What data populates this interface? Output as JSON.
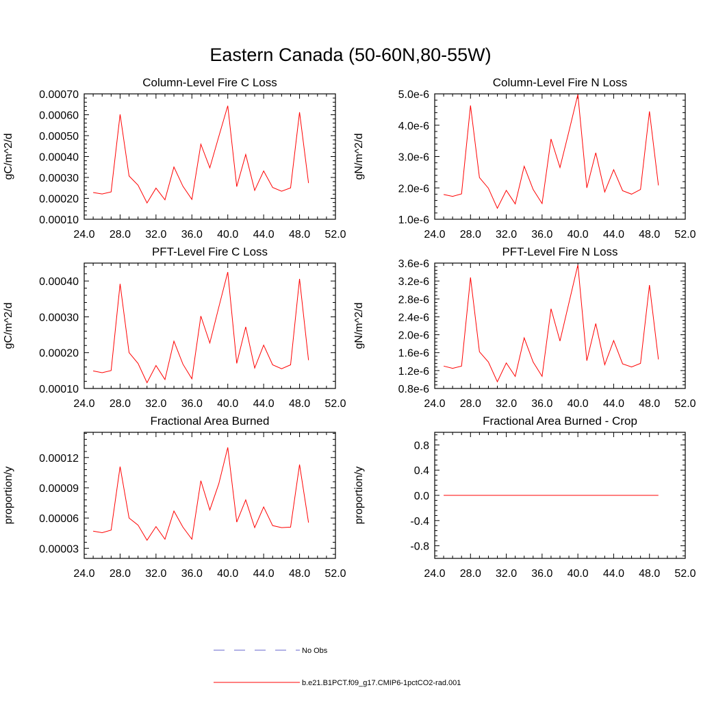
{
  "page": {
    "title": "Eastern Canada (50-60N,80-55W)"
  },
  "colors": {
    "model_line": "#ff0000",
    "obs_line": "#6666cc",
    "axis": "#000000"
  },
  "legend": {
    "items": [
      {
        "label": "No Obs",
        "style": "dashed",
        "color": "#6666cc"
      },
      {
        "label": "b.e21.B1PCT.f09_g17.CMIP6-1pctCO2-rad.001",
        "style": "solid",
        "color": "#ff0000"
      }
    ]
  },
  "chart_data": [
    {
      "type": "line",
      "title": "Column-Level Fire C Loss",
      "xlabel": "",
      "ylabel": "gC/m^2/d",
      "xlim": [
        24,
        52
      ],
      "ylim": [
        0.0001,
        0.0007
      ],
      "xticks": [
        "24.0",
        "28.0",
        "32.0",
        "36.0",
        "40.0",
        "44.0",
        "48.0",
        "52.0"
      ],
      "yticks": [
        "0.00010",
        "0.00020",
        "0.00030",
        "0.00040",
        "0.00050",
        "0.00060",
        "0.00070"
      ],
      "x": [
        25,
        26,
        27,
        28,
        29,
        30,
        31,
        32,
        33,
        34,
        35,
        36,
        37,
        38,
        39,
        40,
        41,
        42,
        43,
        44,
        45,
        46,
        47,
        48,
        49
      ],
      "series": [
        {
          "name": "b.e21.B1PCT.f09_g17.CMIP6-1pctCO2-rad.001",
          "values": [
            0.000228,
            0.000221,
            0.000231,
            0.000602,
            0.000307,
            0.000263,
            0.000178,
            0.000249,
            0.000193,
            0.00035,
            0.000258,
            0.000195,
            0.000459,
            0.000346,
            0.000496,
            0.000643,
            0.000256,
            0.00041,
            0.000238,
            0.000331,
            0.000252,
            0.000234,
            0.00025,
            0.000612,
            0.000273
          ]
        }
      ]
    },
    {
      "type": "line",
      "title": "Column-Level Fire N Loss",
      "xlabel": "",
      "ylabel": "gN/m^2/d",
      "xlim": [
        24,
        52
      ],
      "ylim": [
        1e-06,
        5e-06
      ],
      "xticks": [
        "24.0",
        "28.0",
        "32.0",
        "36.0",
        "40.0",
        "44.0",
        "48.0",
        "52.0"
      ],
      "yticks": [
        "1.0e-6",
        "2.0e-6",
        "3.0e-6",
        "4.0e-6",
        "5.0e-6"
      ],
      "x": [
        25,
        26,
        27,
        28,
        29,
        30,
        31,
        32,
        33,
        34,
        35,
        36,
        37,
        38,
        39,
        40,
        41,
        42,
        43,
        44,
        45,
        46,
        47,
        48,
        49
      ],
      "series": [
        {
          "name": "b.e21.B1PCT.f09_g17.CMIP6-1pctCO2-rad.001",
          "values": [
            1.79e-06,
            1.73e-06,
            1.81e-06,
            4.63e-06,
            2.33e-06,
            1.99e-06,
            1.35e-06,
            1.92e-06,
            1.49e-06,
            2.69e-06,
            1.95e-06,
            1.5e-06,
            3.56e-06,
            2.65e-06,
            3.8e-06,
            4.98e-06,
            2e-06,
            3.12e-06,
            1.87e-06,
            2.58e-06,
            1.91e-06,
            1.8e-06,
            1.95e-06,
            4.44e-06,
            2.08e-06
          ]
        }
      ]
    },
    {
      "type": "line",
      "title": "PFT-Level Fire C Loss",
      "xlabel": "",
      "ylabel": "gC/m^2/d",
      "xlim": [
        24,
        52
      ],
      "ylim": [
        0.0001,
        0.00045
      ],
      "xticks": [
        "24.0",
        "28.0",
        "32.0",
        "36.0",
        "40.0",
        "44.0",
        "48.0",
        "52.0"
      ],
      "yticks": [
        "0.00010",
        "0.00020",
        "0.00030",
        "0.00040"
      ],
      "x": [
        25,
        26,
        27,
        28,
        29,
        30,
        31,
        32,
        33,
        34,
        35,
        36,
        37,
        38,
        39,
        40,
        41,
        42,
        43,
        44,
        45,
        46,
        47,
        48,
        49
      ],
      "series": [
        {
          "name": "b.e21.B1PCT.f09_g17.CMIP6-1pctCO2-rad.001",
          "values": [
            0.000149,
            0.000144,
            0.00015,
            0.000392,
            0.0002,
            0.00017,
            0.000116,
            0.000164,
            0.000125,
            0.000232,
            0.000168,
            0.000127,
            0.000302,
            0.000227,
            0.000327,
            0.000425,
            0.00017,
            0.000272,
            0.000157,
            0.000221,
            0.000166,
            0.000155,
            0.000166,
            0.000406,
            0.000179
          ]
        }
      ]
    },
    {
      "type": "line",
      "title": "PFT-Level Fire N Loss",
      "xlabel": "",
      "ylabel": "gN/m^2/d",
      "xlim": [
        24,
        52
      ],
      "ylim": [
        8e-07,
        3.6e-06
      ],
      "xticks": [
        "24.0",
        "28.0",
        "32.0",
        "36.0",
        "40.0",
        "44.0",
        "48.0",
        "52.0"
      ],
      "yticks": [
        "0.8e-6",
        "1.2e-6",
        "1.6e-6",
        "2.0e-6",
        "2.4e-6",
        "2.8e-6",
        "3.2e-6",
        "3.6e-6"
      ],
      "x": [
        25,
        26,
        27,
        28,
        29,
        30,
        31,
        32,
        33,
        34,
        35,
        36,
        37,
        38,
        39,
        40,
        41,
        42,
        43,
        44,
        45,
        46,
        47,
        48,
        49
      ],
      "series": [
        {
          "name": "b.e21.B1PCT.f09_g17.CMIP6-1pctCO2-rad.001",
          "values": [
            1.3e-06,
            1.25e-06,
            1.3e-06,
            3.28e-06,
            1.62e-06,
            1.39e-06,
            9.5e-07,
            1.37e-06,
            1.07e-06,
            1.93e-06,
            1.39e-06,
            1.07e-06,
            2.58e-06,
            1.86e-06,
            2.71e-06,
            3.56e-06,
            1.42e-06,
            2.25e-06,
            1.33e-06,
            1.87e-06,
            1.35e-06,
            1.28e-06,
            1.36e-06,
            3.11e-06,
            1.45e-06
          ]
        }
      ]
    },
    {
      "type": "line",
      "title": "Fractional Area Burned",
      "xlabel": "",
      "ylabel": "proportion/y",
      "xlim": [
        24,
        52
      ],
      "ylim": [
        2e-05,
        0.000145
      ],
      "xticks": [
        "24.0",
        "28.0",
        "32.0",
        "36.0",
        "40.0",
        "44.0",
        "48.0",
        "52.0"
      ],
      "yticks": [
        "0.00003",
        "0.00006",
        "0.00009",
        "0.00012"
      ],
      "x": [
        25,
        26,
        27,
        28,
        29,
        30,
        31,
        32,
        33,
        34,
        35,
        36,
        37,
        38,
        39,
        40,
        41,
        42,
        43,
        44,
        45,
        46,
        47,
        48,
        49
      ],
      "series": [
        {
          "name": "b.e21.B1PCT.f09_g17.CMIP6-1pctCO2-rad.001",
          "values": [
            4.7e-05,
            4.55e-05,
            4.8e-05,
            0.000111,
            6e-05,
            5.3e-05,
            3.8e-05,
            5.15e-05,
            3.9e-05,
            6.7e-05,
            5.1e-05,
            3.9e-05,
            9.7e-05,
            6.8e-05,
            9.4e-05,
            0.00013,
            5.6e-05,
            7.8e-05,
            5.05e-05,
            7.1e-05,
            5.25e-05,
            5.05e-05,
            5.1e-05,
            0.000113,
            5.55e-05
          ]
        }
      ]
    },
    {
      "type": "line",
      "title": "Fractional Area Burned - Crop",
      "xlabel": "",
      "ylabel": "proportion/y",
      "xlim": [
        24,
        52
      ],
      "ylim": [
        -1.0,
        1.0
      ],
      "xticks": [
        "24.0",
        "28.0",
        "32.0",
        "36.0",
        "40.0",
        "44.0",
        "48.0",
        "52.0"
      ],
      "yticks": [
        "-0.8",
        "-0.4",
        "0.0",
        "0.4",
        "0.8"
      ],
      "x": [
        25,
        26,
        27,
        28,
        29,
        30,
        31,
        32,
        33,
        34,
        35,
        36,
        37,
        38,
        39,
        40,
        41,
        42,
        43,
        44,
        45,
        46,
        47,
        48,
        49
      ],
      "series": [
        {
          "name": "b.e21.B1PCT.f09_g17.CMIP6-1pctCO2-rad.001",
          "values": [
            0,
            0,
            0,
            0,
            0,
            0,
            0,
            0,
            0,
            0,
            0,
            0,
            0,
            0,
            0,
            0,
            0,
            0,
            0,
            0,
            0,
            0,
            0,
            0,
            0
          ]
        }
      ]
    }
  ]
}
